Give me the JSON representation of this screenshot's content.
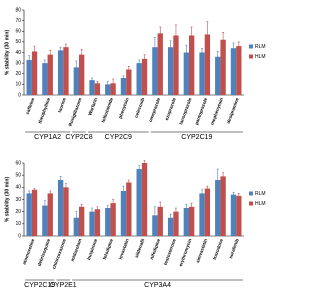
{
  "chart_data": [
    {
      "type": "bar",
      "y_label": "% stability (30 min)",
      "categories": [
        "caffeine",
        "theophylline",
        "taurine",
        "Rosiglitazone",
        "Warfarin",
        "tolbutamide",
        "phenytoin",
        "celecoxib",
        "omeprazole",
        "ezoprazole",
        "lansoprazole",
        "pantoprazole",
        "mephenytoin",
        "desipramine"
      ],
      "groups": [
        "CYP1A2",
        "CYP2C8",
        "CYP2C9",
        "CYP2C19"
      ],
      "series": [
        {
          "name": "RLM",
          "color": "#4f81bd",
          "values": [
            33,
            30,
            42,
            26,
            14,
            10,
            16,
            30,
            45,
            45,
            40,
            40,
            36,
            44
          ],
          "errors": [
            4,
            3,
            3,
            6,
            2,
            3,
            2,
            3,
            9,
            6,
            7,
            4,
            5,
            5
          ]
        },
        {
          "name": "HLM",
          "color": "#c0504d",
          "values": [
            41,
            38,
            45,
            38,
            11,
            11,
            24,
            34,
            58,
            56,
            56,
            57,
            52,
            46
          ],
          "errors": [
            5,
            4,
            3,
            5,
            2,
            4,
            3,
            4,
            6,
            10,
            8,
            12,
            7,
            4
          ]
        }
      ],
      "ylim": [
        0,
        80
      ],
      "yticks": [
        0,
        10,
        20,
        30,
        40,
        50,
        60,
        70,
        80
      ],
      "legend": "right"
    },
    {
      "type": "bar",
      "y_label": "% stability (30 min)",
      "categories": [
        "atomoxetine",
        "debrisoquine",
        "chlorzoxazone",
        "midazolam",
        "buspirone",
        "felodipine",
        "lovastatin",
        "sildenafil",
        "nifedipine",
        "testosterone",
        "erythromycin",
        "simvastatin",
        "trazodone",
        "sorafenib"
      ],
      "groups": [
        "CYP2C19",
        "CYP2E1",
        "CYP3A4"
      ],
      "series": [
        {
          "name": "RLM",
          "color": "#4f81bd",
          "values": [
            35,
            25,
            46,
            15,
            20,
            23,
            37,
            55,
            17,
            15,
            23,
            35,
            46,
            34
          ],
          "errors": [
            2,
            4,
            3,
            5,
            3,
            2,
            4,
            3,
            7,
            3,
            3,
            3,
            9,
            2
          ]
        },
        {
          "name": "HLM",
          "color": "#c0504d",
          "values": [
            38,
            35,
            40,
            24,
            22,
            27,
            44,
            60,
            24,
            20,
            24,
            39,
            49,
            33
          ],
          "errors": [
            1,
            2,
            3,
            2,
            2,
            3,
            2,
            2,
            4,
            3,
            3,
            2,
            3,
            2
          ]
        }
      ],
      "ylim": [
        0,
        60
      ],
      "yticks": [
        0,
        10,
        20,
        30,
        40,
        50,
        60
      ],
      "legend": "right"
    }
  ]
}
